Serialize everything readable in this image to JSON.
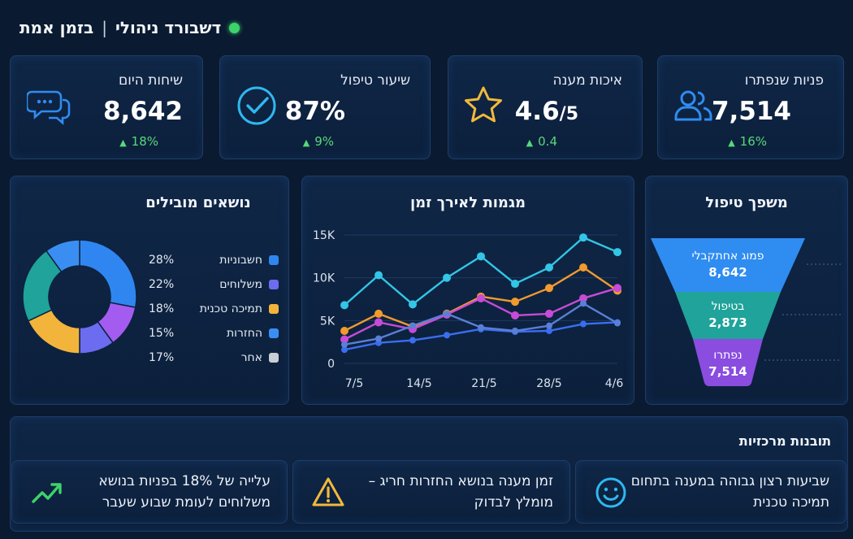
{
  "header": {
    "title": "דשבורד ניהולי",
    "separator": "|",
    "subtitle": "בזמן אמת",
    "status_color": "#3dd36b"
  },
  "kpis": [
    {
      "label": "פניות שנפתרו",
      "value": "7,514",
      "suffix": "",
      "delta": "16%",
      "icon": "users-icon",
      "color": "#2f8cf0"
    },
    {
      "label": "איכות מענה",
      "value": "4.6",
      "suffix": "/5",
      "delta": "0.4",
      "icon": "star-icon",
      "color": "#f2b93b"
    },
    {
      "label": "שיעור טיפול",
      "value": "87%",
      "suffix": "",
      "delta": "9%",
      "icon": "check-circle-icon",
      "color": "#2fb8f0"
    },
    {
      "label": "שיחות היום",
      "value": "8,642",
      "suffix": "",
      "delta": "18%",
      "icon": "chat-icon",
      "color": "#2f8cf0"
    }
  ],
  "topics": {
    "title": "נושאים מובילים",
    "items": [
      {
        "name": "חשבוניות",
        "percent": "28%",
        "color": "#2f86f0"
      },
      {
        "name": "משלוחים",
        "percent": "22%",
        "color": "#6b6cf0"
      },
      {
        "name": "תמיכה טכנית",
        "percent": "18%",
        "color": "#f2b43a"
      },
      {
        "name": "החזרות",
        "percent": "15%",
        "color": "#3a8ef2"
      },
      {
        "name": "אחר",
        "percent": "17%",
        "color": "#c9ced6"
      }
    ]
  },
  "chart_data": {
    "type": "line",
    "title": "מגמות לאירך זמן",
    "x": [
      "7/5",
      "14/5",
      "21/5",
      "28/5",
      "4/6"
    ],
    "y_ticks": [
      "0",
      "5K",
      "10K",
      "15K"
    ],
    "ylim": [
      0,
      15000
    ],
    "series": [
      {
        "color": "#33c6e6",
        "points": [
          [
            0,
            6800
          ],
          [
            1,
            10300
          ],
          [
            2,
            6900
          ],
          [
            3,
            10000
          ],
          [
            4,
            12500
          ],
          [
            5,
            9300
          ],
          [
            6,
            11200
          ],
          [
            7,
            14700
          ],
          [
            8,
            13000
          ]
        ]
      },
      {
        "color": "#f29a2e",
        "points": [
          [
            0,
            3800
          ],
          [
            1,
            5800
          ],
          [
            2,
            4300
          ],
          [
            3,
            5800
          ],
          [
            4,
            7800
          ],
          [
            5,
            7200
          ],
          [
            6,
            8800
          ],
          [
            7,
            11200
          ],
          [
            8,
            8500
          ]
        ]
      },
      {
        "color": "#c64bd6",
        "points": [
          [
            0,
            2800
          ],
          [
            1,
            4800
          ],
          [
            2,
            4000
          ],
          [
            3,
            5700
          ],
          [
            4,
            7600
          ],
          [
            5,
            5600
          ],
          [
            6,
            5800
          ],
          [
            7,
            7600
          ],
          [
            8,
            8800
          ]
        ]
      },
      {
        "color": "#3a6ef0",
        "points": [
          [
            0,
            1600
          ],
          [
            1,
            2400
          ],
          [
            2,
            2700
          ],
          [
            3,
            3300
          ],
          [
            4,
            4000
          ],
          [
            5,
            3700
          ],
          [
            6,
            3800
          ],
          [
            7,
            4600
          ],
          [
            8,
            4800
          ]
        ]
      },
      {
        "color": "#5a7fd6",
        "points": [
          [
            0,
            2200
          ],
          [
            1,
            2900
          ],
          [
            2,
            4400
          ],
          [
            3,
            5800
          ],
          [
            4,
            4200
          ],
          [
            5,
            3800
          ],
          [
            6,
            4400
          ],
          [
            7,
            7000
          ],
          [
            8,
            4700
          ]
        ]
      }
    ]
  },
  "funnel": {
    "title": "משפך טיפול",
    "stages": [
      {
        "label": "פמוג אחתקבלי",
        "value": "8,642",
        "color": "#2f8cf0"
      },
      {
        "label": "בטיפול",
        "value": "2,873",
        "color": "#1fa39a"
      },
      {
        "label": "נפתרו",
        "value": "7,514",
        "color": "#8a4de0"
      }
    ]
  },
  "insights": {
    "title": "תובנות מרכזיות",
    "items": [
      {
        "text": "שביעות רצון גבוהה במענה בתחום תמיכה טכנית",
        "icon": "smile-icon"
      },
      {
        "text": "זמן מענה בנושא החזרות חריג – מומלץ לבדוק",
        "icon": "warning-icon"
      },
      {
        "text": "עלייה של 18% בפניות בנושא משלוחים לעומת שבוע שעבר",
        "icon": "trend-up-icon"
      }
    ]
  }
}
